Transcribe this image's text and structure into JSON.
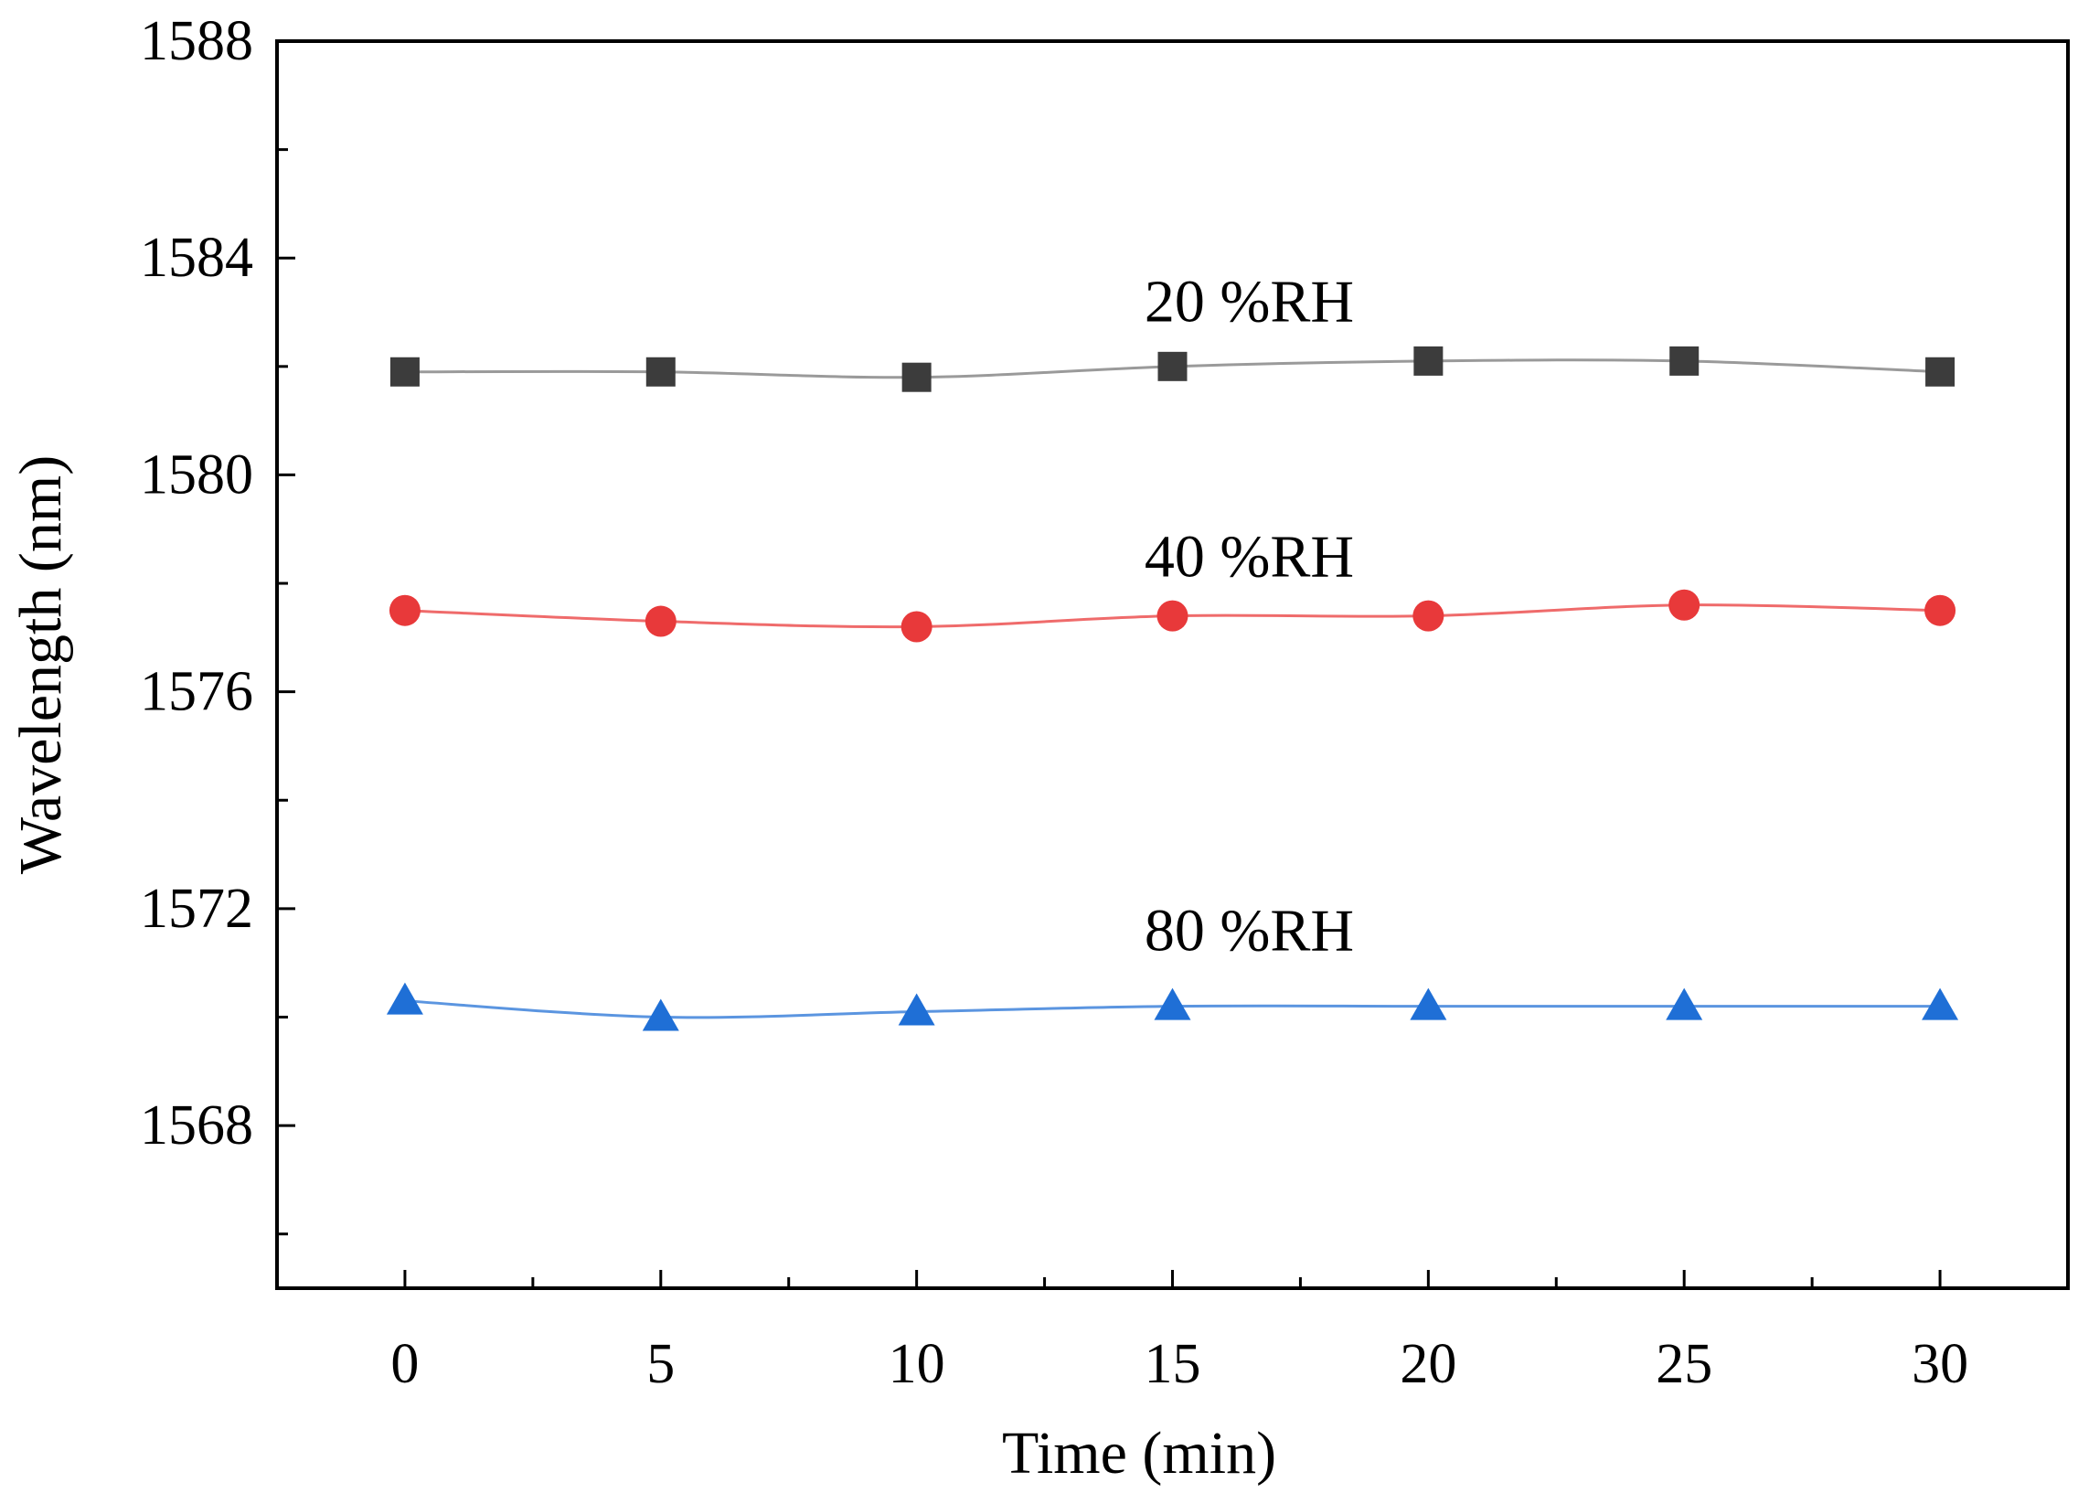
{
  "chart_data": {
    "type": "line",
    "title": "",
    "xlabel": "Time (min)",
    "ylabel": "Wavelength (nm)",
    "xlim": [
      -2.5,
      32.5
    ],
    "ylim": [
      1565,
      1588
    ],
    "x_ticks": [
      0,
      5,
      10,
      15,
      20,
      25,
      30
    ],
    "x_tick_labels": [
      "0",
      "5",
      "10",
      "15",
      "20",
      "25",
      "30"
    ],
    "y_ticks": [
      1568,
      1572,
      1576,
      1580,
      1584,
      1588
    ],
    "y_tick_labels": [
      "1568",
      "1572",
      "1576",
      "1580",
      "1584",
      "1588"
    ],
    "grid": false,
    "x": [
      0,
      5,
      10,
      15,
      20,
      25,
      30
    ],
    "series": [
      {
        "name": "20 %RH",
        "marker": "square",
        "color": "#3c3c3c",
        "line_color": "#9a9a9a",
        "values": [
          1581.9,
          1581.9,
          1581.8,
          1582.0,
          1582.1,
          1582.1,
          1581.9
        ]
      },
      {
        "name": "40 %RH",
        "marker": "circle",
        "color": "#e8393a",
        "line_color": "#ef6b6b",
        "values": [
          1577.5,
          1577.3,
          1577.2,
          1577.4,
          1577.4,
          1577.6,
          1577.5
        ]
      },
      {
        "name": "80 %RH",
        "marker": "triangle",
        "color": "#1f6fd6",
        "line_color": "#5b95e0",
        "values": [
          1570.3,
          1570.0,
          1570.1,
          1570.2,
          1570.2,
          1570.2,
          1570.2
        ]
      }
    ],
    "annotations": [
      {
        "text": "20 %RH",
        "x": 16.5,
        "y": 1583.2
      },
      {
        "text": "40 %RH",
        "x": 16.5,
        "y": 1578.5
      },
      {
        "text": "80 %RH",
        "x": 16.5,
        "y": 1571.6
      }
    ]
  }
}
